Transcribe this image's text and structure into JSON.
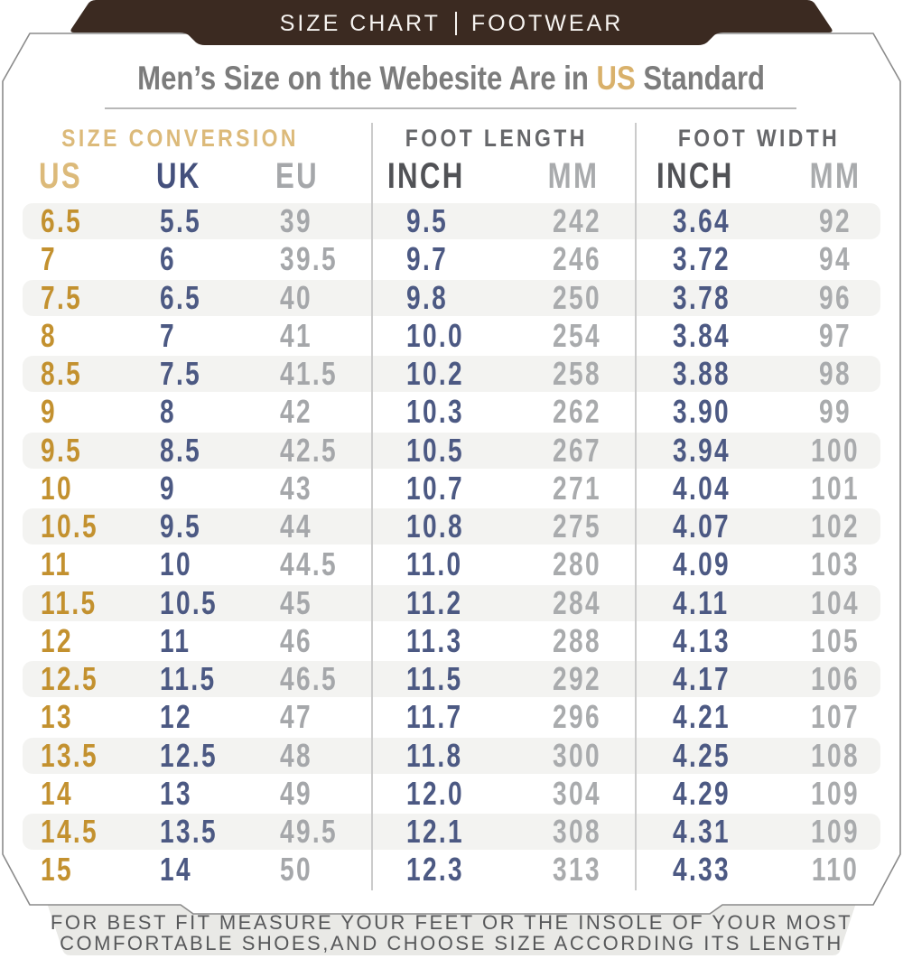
{
  "banner": {
    "left": "SIZE CHART",
    "right": "FOOTWEAR"
  },
  "title": {
    "prefix": "Men’s Size on the Webesite Are in ",
    "highlight": "US",
    "suffix": " Standard"
  },
  "chart_data": {
    "type": "table",
    "title": "Men’s Size on the Webesite Are in US Standard",
    "groups": [
      {
        "label": "SIZE CONVERSION",
        "columns": [
          "US",
          "UK",
          "EU"
        ]
      },
      {
        "label": "FOOT LENGTH",
        "columns": [
          "INCH",
          "MM"
        ]
      },
      {
        "label": "FOOT WIDTH",
        "columns": [
          "INCH",
          "MM"
        ]
      }
    ],
    "columns": [
      "US",
      "UK",
      "EU",
      "INCH",
      "MM",
      "INCH",
      "MM"
    ],
    "rows": [
      [
        "6.5",
        "5.5",
        "39",
        "9.5",
        "242",
        "3.64",
        "92"
      ],
      [
        "7",
        "6",
        "39.5",
        "9.7",
        "246",
        "3.72",
        "94"
      ],
      [
        "7.5",
        "6.5",
        "40",
        "9.8",
        "250",
        "3.78",
        "96"
      ],
      [
        "8",
        "7",
        "41",
        "10.0",
        "254",
        "3.84",
        "97"
      ],
      [
        "8.5",
        "7.5",
        "41.5",
        "10.2",
        "258",
        "3.88",
        "98"
      ],
      [
        "9",
        "8",
        "42",
        "10.3",
        "262",
        "3.90",
        "99"
      ],
      [
        "9.5",
        "8.5",
        "42.5",
        "10.5",
        "267",
        "3.94",
        "100"
      ],
      [
        "10",
        "9",
        "43",
        "10.7",
        "271",
        "4.04",
        "101"
      ],
      [
        "10.5",
        "9.5",
        "44",
        "10.8",
        "275",
        "4.07",
        "102"
      ],
      [
        "11",
        "10",
        "44.5",
        "11.0",
        "280",
        "4.09",
        "103"
      ],
      [
        "11.5",
        "10.5",
        "45",
        "11.2",
        "284",
        "4.11",
        "104"
      ],
      [
        "12",
        "11",
        "46",
        "11.3",
        "288",
        "4.13",
        "105"
      ],
      [
        "12.5",
        "11.5",
        "46.5",
        "11.5",
        "292",
        "4.17",
        "106"
      ],
      [
        "13",
        "12",
        "47",
        "11.7",
        "296",
        "4.21",
        "107"
      ],
      [
        "13.5",
        "12.5",
        "48",
        "11.8",
        "300",
        "4.25",
        "108"
      ],
      [
        "14",
        "13",
        "49",
        "12.0",
        "304",
        "4.29",
        "109"
      ],
      [
        "14.5",
        "13.5",
        "49.5",
        "12.1",
        "308",
        "4.31",
        "109"
      ],
      [
        "15",
        "14",
        "50",
        "12.3",
        "313",
        "4.33",
        "110"
      ]
    ]
  },
  "footer": {
    "line1": "FOR BEST FIT MEASURE YOUR FEET OR THE INSOLE OF YOUR MOST",
    "line2": "COMFORTABLE SHOES,AND CHOOSE SIZE ACCORDING ITS LENGTH"
  },
  "colors": {
    "banner_brown": "#3b2a21",
    "banner_text": "#f6f3f0",
    "title_gray": "#7c7c7c",
    "gold_light": "#dcba7a",
    "gold_dark": "#c3912f",
    "navy": "#4c5983",
    "gray_dark": "#515256",
    "gray_light": "#a9abad",
    "stripe": "#f3f3f1",
    "footer_bg": "#e9e9e6",
    "card_border": "#8b8b8b"
  }
}
